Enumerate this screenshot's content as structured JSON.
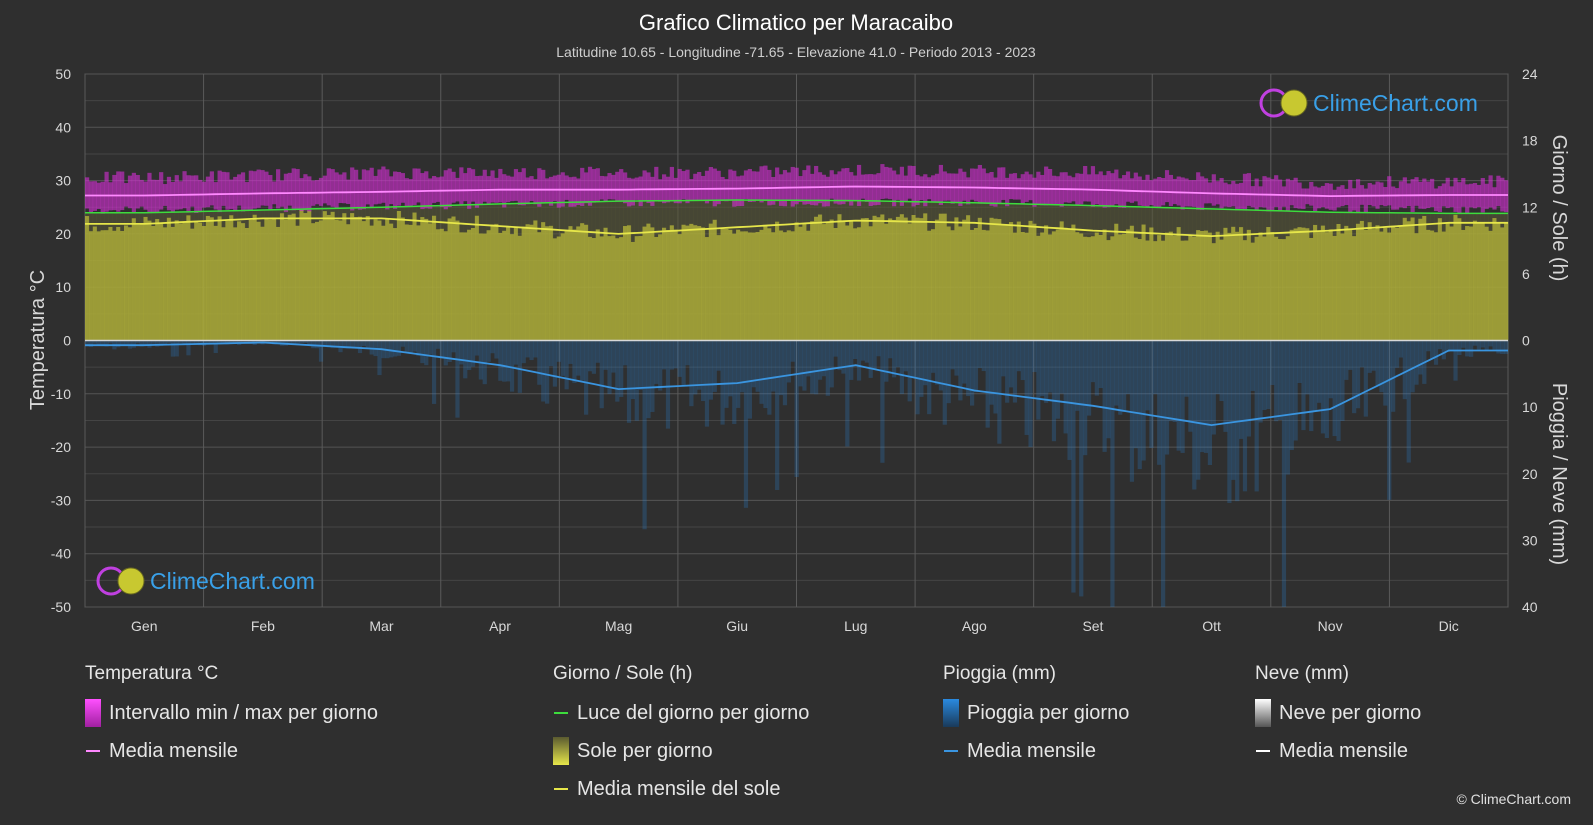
{
  "header": {
    "title": "Grafico Climatico per Maracaibo",
    "subtitle": "Latitudine 10.65 - Longitudine -71.65 - Elevazione 41.0 - Periodo 2013 - 2023"
  },
  "chart_data": {
    "type": "area",
    "categories": [
      "Gen",
      "Feb",
      "Mar",
      "Apr",
      "Mag",
      "Giu",
      "Lug",
      "Ago",
      "Set",
      "Ott",
      "Nov",
      "Dic"
    ],
    "y_left": {
      "label": "Temperatura °C",
      "range": [
        -50,
        50
      ],
      "ticks": [
        "50",
        "40",
        "30",
        "20",
        "10",
        "0",
        "-10",
        "-20",
        "-30",
        "-40",
        "-50"
      ]
    },
    "y_right_top": {
      "label": "Giorno / Sole (h)",
      "range": [
        0,
        24
      ],
      "ticks": [
        "24",
        "18",
        "12",
        "6",
        "0"
      ]
    },
    "y_right_bottom": {
      "label": "Pioggia / Neve (mm)",
      "range": [
        0,
        40
      ],
      "ticks": [
        "0",
        "10",
        "20",
        "30",
        "40"
      ]
    },
    "grid": true,
    "series": [
      {
        "name": "Intervallo min / max per giorno",
        "kind": "band",
        "color": "#d62fd6",
        "min": [
          24.5,
          24.8,
          25.2,
          25.5,
          25.8,
          25.8,
          25.9,
          25.9,
          25.6,
          25.0,
          24.8,
          24.6
        ],
        "max": [
          30.5,
          31.0,
          31.5,
          31.5,
          31.5,
          31.5,
          32.0,
          31.8,
          31.5,
          30.5,
          29.5,
          29.8
        ]
      },
      {
        "name": "Media mensile",
        "kind": "line",
        "axis": "temp",
        "color": "#ff88ff",
        "values": [
          27.2,
          27.6,
          27.9,
          28.3,
          28.3,
          28.5,
          28.9,
          28.7,
          28.3,
          27.6,
          27.1,
          27.3
        ]
      },
      {
        "name": "Luce del giorno per giorno",
        "kind": "line",
        "axis": "hours",
        "color": "#3ddc3d",
        "values": [
          11.5,
          11.75,
          12.0,
          12.3,
          12.55,
          12.65,
          12.6,
          12.4,
          12.15,
          11.85,
          11.55,
          11.45
        ]
      },
      {
        "name": "Sole per giorno",
        "kind": "area",
        "axis": "hours",
        "color": "#b8b838",
        "values": [
          10.5,
          11.0,
          11.0,
          10.3,
          9.6,
          10.2,
          10.8,
          10.6,
          9.9,
          9.4,
          9.9,
          10.6
        ]
      },
      {
        "name": "Media mensile del sole",
        "kind": "line",
        "axis": "hours",
        "color": "#e6e64a",
        "values": [
          10.5,
          11.0,
          11.0,
          10.3,
          9.6,
          10.2,
          10.8,
          10.6,
          9.9,
          9.4,
          9.9,
          10.6
        ]
      },
      {
        "name": "Pioggia per giorno",
        "kind": "bars",
        "axis": "rain",
        "color": "#2a7fc9"
      },
      {
        "name": "Media mensile",
        "kind": "line",
        "axis": "rain",
        "color": "#3a95e0",
        "values": [
          0.7,
          0.3,
          1.3,
          3.7,
          7.3,
          6.4,
          3.7,
          7.5,
          9.8,
          12.7,
          10.3,
          1.5
        ]
      }
    ]
  },
  "legend": {
    "temperature": {
      "heading": "Temperatura °C",
      "items": [
        "Intervallo min / max per giorno",
        "Media mensile"
      ]
    },
    "sun": {
      "heading": "Giorno / Sole (h)",
      "items": [
        "Luce del giorno per giorno",
        "Sole per giorno",
        "Media mensile del sole"
      ]
    },
    "rain": {
      "heading": "Pioggia (mm)",
      "items": [
        "Pioggia per giorno",
        "Media mensile"
      ]
    },
    "snow": {
      "heading": "Neve (mm)",
      "items": [
        "Neve per giorno",
        "Media mensile"
      ]
    }
  },
  "colors": {
    "background": "#2f2f2f",
    "temp_band": "#d62fd6",
    "temp_mean": "#ff88ff",
    "daylight": "#3ddc3d",
    "sun": "#b8b838",
    "sun_mean": "#e6e64a",
    "rain": "#2a7fc9",
    "rain_mean": "#3a95e0",
    "snow_mean": "#ffffff"
  },
  "watermark": "ClimeChart.com",
  "copyright": "© ClimeChart.com"
}
